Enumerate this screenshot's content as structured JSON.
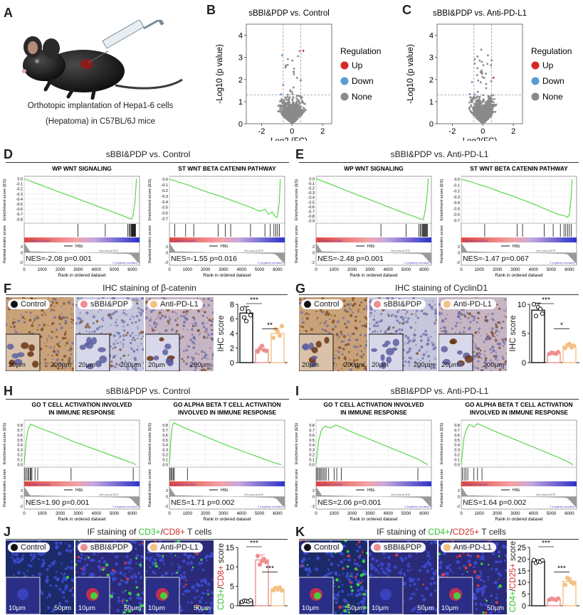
{
  "panels": {
    "A": {
      "label": "A",
      "caption_line1": "Orthotopic implantation of Hepa1-6 cells",
      "caption_line2": "(Hepatoma) in C57BL/6J mice"
    },
    "B": {
      "label": "B",
      "title": "sBBI&PDP vs. Control"
    },
    "C": {
      "label": "C",
      "title": "sBBI&PDP vs. Anti-PD-L1"
    },
    "D": {
      "label": "D",
      "title": "sBBI&PDP vs. Control"
    },
    "E": {
      "label": "E",
      "title": "sBBI&PDP vs. Anti-PD-L1"
    },
    "F": {
      "label": "F",
      "title": "IHC staining of β-catenin",
      "ylabel": "IHC score",
      "sig1": "***",
      "sig2": "**"
    },
    "G": {
      "label": "G",
      "title": "IHC staining of CyclinD1",
      "ylabel": "IHC score",
      "sig1": "***",
      "sig2": "*"
    },
    "H": {
      "label": "H",
      "title": "sBBI&PDP vs. Control"
    },
    "I": {
      "label": "I",
      "title": "sBBI&PDP vs. Anti-PD-L1"
    },
    "J": {
      "label": "J",
      "title_prefix": "IF staining of ",
      "m1": "CD3+",
      "sep": "/",
      "m2": "CD8+",
      "title_suffix": " T cells",
      "ylabel_m1": "CD3+",
      "ylabel_sep": "/",
      "ylabel_m2": "CD8+",
      "ylabel_suffix": " score",
      "sig1": "***",
      "sig2": "***"
    },
    "K": {
      "label": "K",
      "title_prefix": "IF staining of ",
      "m1": "CD4+",
      "sep": "/",
      "m2": "CD25+",
      "title_suffix": " T cells",
      "ylabel_m1": "CD4+",
      "ylabel_sep": "/",
      "ylabel_m2": "CD25+",
      "ylabel_suffix": " score",
      "sig1": "***",
      "sig2": "***"
    }
  },
  "groups": [
    "Control",
    "sBBI&PDP",
    "Anti-PD-L1"
  ],
  "scale_small": "10μm",
  "scale_small_20": "20μm",
  "scale_large": "50μm",
  "scale_large_200": "200μm",
  "colors": {
    "control": "#111111",
    "sbbi": "#f08f8f",
    "anti": "#f4c083",
    "up": "#d62728",
    "down": "#5b9bd5",
    "none": "#8a8a8a",
    "es_line": "#4cd43c",
    "cd3": "#3ce13c",
    "cd8": "#e03c3c"
  },
  "gsea_text": {
    "ylabel_es": "Enrichment score (ES)",
    "ylabel_rank": "Ranked metric score",
    "xlabel": "Rank in ordered dataset",
    "hits": "Hits",
    "pos": "'1' (positively correlated)",
    "neg": "'2' (negatively correlated)",
    "zero": "Zero cross at 3075"
  },
  "chart_data": [
    {
      "id": "B",
      "type": "scatter",
      "title": "sBBI&PDP vs. Control",
      "xlabel": "Log2 (FC)",
      "ylabel": "-Log10 (p value)",
      "xlim": [
        -3,
        2.6
      ],
      "ylim": [
        0,
        4.5
      ],
      "xticks": [
        -2,
        0,
        2
      ],
      "yticks": [
        0,
        1,
        2,
        3,
        4
      ],
      "legend_title": "Regulation",
      "legend": [
        "Up",
        "Down",
        "None"
      ],
      "fc_cut": [
        -0.58,
        0.58
      ],
      "p_cut": 1.3
    },
    {
      "id": "C",
      "type": "scatter",
      "title": "sBBI&PDP vs. Anti-PD-L1",
      "xlabel": "Log2(FC)",
      "ylabel": "-Log10 (p value)",
      "xlim": [
        -3,
        2.6
      ],
      "ylim": [
        0,
        4.5
      ],
      "xticks": [
        -2,
        0,
        2
      ],
      "yticks": [
        0,
        1,
        2,
        3,
        4
      ],
      "legend_title": "Regulation",
      "legend": [
        "Up",
        "Down",
        "None"
      ],
      "fc_cut": [
        -0.58,
        0.58
      ],
      "p_cut": 1.3
    },
    {
      "id": "D1",
      "type": "line",
      "title": "WP WNT SIGNALING",
      "nes_text": "NES=-2.08 p=0.001",
      "es_type": "neg",
      "yticks": [
        0.0,
        -0.1,
        -0.2,
        -0.3,
        -0.4,
        -0.5,
        -0.6,
        -0.7,
        -0.8
      ],
      "ylim": [
        -0.88,
        0.05
      ],
      "xticks": [
        0,
        1000,
        2000,
        3000,
        4000,
        5000,
        6000
      ],
      "xlim": [
        0,
        6400
      ],
      "es": [
        [
          0,
          0
        ],
        [
          600,
          -0.08
        ],
        [
          1200,
          -0.16
        ],
        [
          1800,
          -0.24
        ],
        [
          2400,
          -0.32
        ],
        [
          3000,
          -0.4
        ],
        [
          3600,
          -0.48
        ],
        [
          4200,
          -0.56
        ],
        [
          4800,
          -0.64
        ],
        [
          5400,
          -0.72
        ],
        [
          5800,
          -0.78
        ],
        [
          5950,
          -0.8
        ],
        [
          6050,
          -0.72
        ],
        [
          6150,
          -0.45
        ],
        [
          6230,
          0
        ]
      ],
      "hits": [
        2980,
        4500,
        5750,
        5820,
        5880,
        5930,
        5970,
        6000,
        6030,
        6060,
        6090,
        6120,
        6150,
        6180
      ]
    },
    {
      "id": "D2",
      "type": "line",
      "title": "ST WNT BETA CATENIN PATHWAY",
      "nes_text": "NES=-1.55 p=0.016",
      "es_type": "neg",
      "yticks": [
        0.0,
        -0.1,
        -0.2,
        -0.3,
        -0.4,
        -0.5,
        -0.6,
        -0.7
      ],
      "ylim": [
        -0.78,
        0.05
      ],
      "xticks": [
        0,
        1000,
        2000,
        3000,
        4000,
        5000,
        6000
      ],
      "xlim": [
        0,
        6400
      ],
      "es": [
        [
          0,
          0
        ],
        [
          500,
          -0.05
        ],
        [
          1000,
          -0.1
        ],
        [
          1600,
          -0.17
        ],
        [
          2200,
          -0.24
        ],
        [
          2800,
          -0.3
        ],
        [
          3400,
          -0.37
        ],
        [
          4000,
          -0.44
        ],
        [
          4600,
          -0.51
        ],
        [
          5000,
          -0.57
        ],
        [
          5300,
          -0.53
        ],
        [
          5500,
          -0.62
        ],
        [
          5700,
          -0.58
        ],
        [
          5900,
          -0.67
        ],
        [
          6000,
          -0.66
        ],
        [
          6100,
          -0.4
        ],
        [
          6150,
          0
        ]
      ],
      "hits": [
        300,
        900,
        1350,
        2700,
        3100,
        3400,
        4500,
        5300,
        5600,
        5800,
        5900,
        6000,
        6100
      ]
    },
    {
      "id": "E1",
      "type": "line",
      "title": "WP WNT SIGNALING",
      "nes_text": "NES=-2.48 p=0.001",
      "es_type": "neg",
      "yticks": [
        0.0,
        -0.1,
        -0.2,
        -0.3,
        -0.4,
        -0.5,
        -0.6,
        -0.7,
        -0.8,
        -0.9
      ],
      "ylim": [
        -0.95,
        0.05
      ],
      "xticks": [
        0,
        1000,
        2000,
        3000,
        4000,
        5000,
        6000
      ],
      "xlim": [
        0,
        6400
      ],
      "es": [
        [
          0,
          0
        ],
        [
          600,
          -0.09
        ],
        [
          1200,
          -0.18
        ],
        [
          1800,
          -0.27
        ],
        [
          2400,
          -0.36
        ],
        [
          3000,
          -0.45
        ],
        [
          3600,
          -0.54
        ],
        [
          4200,
          -0.63
        ],
        [
          4800,
          -0.72
        ],
        [
          5400,
          -0.8
        ],
        [
          5800,
          -0.86
        ],
        [
          5950,
          -0.87
        ],
        [
          6050,
          -0.7
        ],
        [
          6150,
          -0.4
        ],
        [
          6230,
          0
        ]
      ],
      "hits": [
        3600,
        5000,
        5700,
        5780,
        5840,
        5900,
        5950,
        5990,
        6030,
        6070,
        6110,
        6150,
        6190
      ]
    },
    {
      "id": "E2",
      "type": "line",
      "title": "ST WNT BETA CATENIN PATHWAY",
      "nes_text": "NES=-1.47 p=0.067",
      "es_type": "neg",
      "yticks": [
        0.0,
        -0.1,
        -0.2,
        -0.3,
        -0.4,
        -0.5,
        -0.6,
        -0.7
      ],
      "ylim": [
        -0.75,
        0.05
      ],
      "xticks": [
        0,
        1000,
        2000,
        3000,
        4000,
        5000,
        6000
      ],
      "xlim": [
        0,
        6400
      ],
      "es": [
        [
          0,
          0
        ],
        [
          500,
          -0.04
        ],
        [
          1000,
          -0.09
        ],
        [
          1600,
          -0.15
        ],
        [
          2200,
          -0.22
        ],
        [
          2800,
          -0.28
        ],
        [
          3400,
          -0.35
        ],
        [
          4000,
          -0.42
        ],
        [
          4600,
          -0.5
        ],
        [
          5000,
          -0.55
        ],
        [
          5400,
          -0.6
        ],
        [
          5700,
          -0.62
        ],
        [
          5900,
          -0.65
        ],
        [
          6000,
          -0.6
        ],
        [
          6100,
          -0.3
        ],
        [
          6150,
          0
        ]
      ],
      "hits": [
        1300,
        3100,
        3400,
        4600,
        5100,
        5500,
        5700,
        5800,
        5900,
        6000,
        6100
      ]
    },
    {
      "id": "H1",
      "type": "line",
      "title": "GO T CELL ACTIVATION INVOLVED",
      "title2": "IN IMMUNE RESPONSE",
      "nes_text": "NES=1.90 p=0.001",
      "es_type": "pos",
      "yticks": [
        0.8,
        0.7,
        0.6,
        0.5,
        0.4,
        0.3,
        0.2,
        0.1,
        0.0
      ],
      "ylim": [
        -0.05,
        0.9
      ],
      "xticks": [
        0,
        1000,
        2000,
        3000,
        4000,
        5000,
        6000
      ],
      "xlim": [
        0,
        6400
      ],
      "es": [
        [
          0,
          0
        ],
        [
          100,
          0.45
        ],
        [
          200,
          0.7
        ],
        [
          350,
          0.82
        ],
        [
          600,
          0.78
        ],
        [
          1000,
          0.72
        ],
        [
          1600,
          0.64
        ],
        [
          2200,
          0.55
        ],
        [
          2800,
          0.46
        ],
        [
          3400,
          0.38
        ],
        [
          4000,
          0.3
        ],
        [
          4600,
          0.22
        ],
        [
          5200,
          0.14
        ],
        [
          5800,
          0.06
        ],
        [
          6100,
          0.02
        ],
        [
          6200,
          0
        ]
      ],
      "hits": [
        40,
        120,
        200,
        260,
        330,
        380,
        430,
        600,
        750,
        2600,
        6050
      ]
    },
    {
      "id": "H2",
      "type": "line",
      "title": "GO ALPHA BETA T CELL ACTIVATION",
      "title2": "INVOLVED IN IMMUNE RESPONSE",
      "nes_text": "NES=1.71 p=0.002",
      "es_type": "pos",
      "yticks": [
        0.8,
        0.7,
        0.6,
        0.5,
        0.4,
        0.3,
        0.2,
        0.1,
        0.0
      ],
      "ylim": [
        -0.05,
        0.9
      ],
      "xticks": [
        0,
        1000,
        2000,
        3000,
        4000,
        5000,
        6000
      ],
      "xlim": [
        0,
        6400
      ],
      "es": [
        [
          0,
          0
        ],
        [
          80,
          0.5
        ],
        [
          160,
          0.78
        ],
        [
          250,
          0.85
        ],
        [
          500,
          0.8
        ],
        [
          1000,
          0.72
        ],
        [
          1600,
          0.63
        ],
        [
          2200,
          0.54
        ],
        [
          2800,
          0.45
        ],
        [
          3400,
          0.36
        ],
        [
          4000,
          0.28
        ],
        [
          4600,
          0.2
        ],
        [
          5200,
          0.12
        ],
        [
          5800,
          0.04
        ],
        [
          6200,
          0
        ]
      ],
      "hits": [
        30,
        90,
        150,
        210,
        270,
        1000
      ]
    },
    {
      "id": "I1",
      "type": "line",
      "title": "GO T CELL ACTIVATION INVOLVED",
      "title2": "IN IMMUNE RESPONSE",
      "nes_text": "NES=2.06 p=0.001",
      "es_type": "pos",
      "yticks": [
        0.8,
        0.7,
        0.6,
        0.5,
        0.4,
        0.3,
        0.2,
        0.1,
        0.0
      ],
      "ylim": [
        -0.05,
        0.9
      ],
      "xticks": [
        0,
        1000,
        2000,
        3000,
        4000,
        5000,
        6000
      ],
      "xlim": [
        0,
        6400
      ],
      "es": [
        [
          0,
          0
        ],
        [
          150,
          0.5
        ],
        [
          300,
          0.7
        ],
        [
          500,
          0.78
        ],
        [
          800,
          0.74
        ],
        [
          1100,
          0.8
        ],
        [
          1500,
          0.74
        ],
        [
          2000,
          0.66
        ],
        [
          2600,
          0.57
        ],
        [
          3200,
          0.48
        ],
        [
          3800,
          0.39
        ],
        [
          4400,
          0.3
        ],
        [
          5000,
          0.21
        ],
        [
          5600,
          0.12
        ],
        [
          6100,
          0.02
        ],
        [
          6200,
          0
        ]
      ],
      "hits": [
        40,
        110,
        180,
        250,
        320,
        400,
        480,
        560,
        700,
        1000,
        1150,
        1400,
        5650
      ]
    },
    {
      "id": "I2",
      "type": "line",
      "title": "GO ALPHA BETA T CELL ACTIVATION",
      "title2": "INVOLVED IN IMMUNE RESPONSE",
      "nes_text": "NES=1.64 p=0.002",
      "es_type": "pos",
      "yticks": [
        0.8,
        0.7,
        0.6,
        0.5,
        0.4,
        0.3,
        0.2,
        0.1,
        0.0
      ],
      "ylim": [
        -0.05,
        0.9
      ],
      "xticks": [
        0,
        1000,
        2000,
        3000,
        4000,
        5000,
        6000
      ],
      "xlim": [
        0,
        6400
      ],
      "es": [
        [
          0,
          0
        ],
        [
          150,
          0.55
        ],
        [
          300,
          0.72
        ],
        [
          450,
          0.82
        ],
        [
          700,
          0.76
        ],
        [
          900,
          0.83
        ],
        [
          1200,
          0.78
        ],
        [
          1700,
          0.7
        ],
        [
          2300,
          0.61
        ],
        [
          2900,
          0.52
        ],
        [
          3500,
          0.43
        ],
        [
          4100,
          0.34
        ],
        [
          4700,
          0.25
        ],
        [
          5300,
          0.16
        ],
        [
          5900,
          0.06
        ],
        [
          6200,
          0
        ]
      ],
      "hits": [
        60,
        160,
        260,
        360,
        700,
        900,
        1150
      ]
    },
    {
      "id": "F_bar",
      "type": "bar",
      "categories": [
        "Control",
        "sBBI&PDP",
        "Anti-PD-L1"
      ],
      "values": [
        6.8,
        1.8,
        4.0
      ],
      "errors": [
        0.9,
        0.4,
        0.7
      ],
      "ylabel": "IHC score",
      "ylim": [
        0,
        8
      ],
      "yticks": [
        0,
        2,
        4,
        6,
        8
      ],
      "points": [
        [
          7.4,
          6.2,
          5.7,
          7.0,
          6.5
        ],
        [
          1.5,
          1.9,
          2.3,
          1.7,
          1.6
        ],
        [
          3.4,
          4.6,
          4.3,
          3.7,
          5.0
        ]
      ]
    },
    {
      "id": "G_bar",
      "type": "bar",
      "categories": [
        "Control",
        "sBBI&PDP",
        "Anti-PD-L1"
      ],
      "values": [
        9.0,
        1.6,
        2.8
      ],
      "errors": [
        1.2,
        0.2,
        0.4
      ],
      "ylabel": "IHC score",
      "ylim": [
        0,
        10
      ],
      "yticks": [
        0,
        5,
        10
      ],
      "points": [
        [
          10.0,
          8.0,
          9.5,
          9.2,
          8.4
        ],
        [
          1.5,
          1.7,
          1.6,
          1.5,
          1.8
        ],
        [
          2.5,
          3.0,
          3.2,
          2.6,
          2.9
        ]
      ]
    },
    {
      "id": "J_bar",
      "type": "bar",
      "categories": [
        "Control",
        "sBBI&PDP",
        "Anti-PD-L1"
      ],
      "values": [
        1.2,
        11.8,
        4.3
      ],
      "errors": [
        0.2,
        1.3,
        0.4
      ],
      "ylabel": "CD3+/CD8+ score",
      "ylim": [
        0,
        15
      ],
      "yticks": [
        0,
        5,
        10,
        15
      ],
      "points": [
        [
          1.0,
          1.3,
          1.2,
          1.1,
          1.4
        ],
        [
          12.8,
          10.6,
          11.5,
          12.0,
          11.2
        ],
        [
          4.0,
          4.6,
          4.2,
          4.7,
          3.9
        ]
      ]
    },
    {
      "id": "K_bar",
      "type": "bar",
      "categories": [
        "Control",
        "sBBI&PDP",
        "Anti-PD-L1"
      ],
      "values": [
        19.0,
        2.8,
        10.5
      ],
      "errors": [
        0.7,
        0.4,
        1.6
      ],
      "ylabel": "CD4+/CD25+ score",
      "ylim": [
        0,
        25
      ],
      "yticks": [
        0,
        5,
        10,
        15,
        20,
        25
      ],
      "points": [
        [
          19.6,
          18.4,
          19.0,
          18.8,
          19.5
        ],
        [
          2.6,
          3.0,
          2.8,
          2.5,
          3.1
        ],
        [
          9.0,
          12.0,
          11.0,
          10.0,
          9.5
        ]
      ]
    }
  ]
}
